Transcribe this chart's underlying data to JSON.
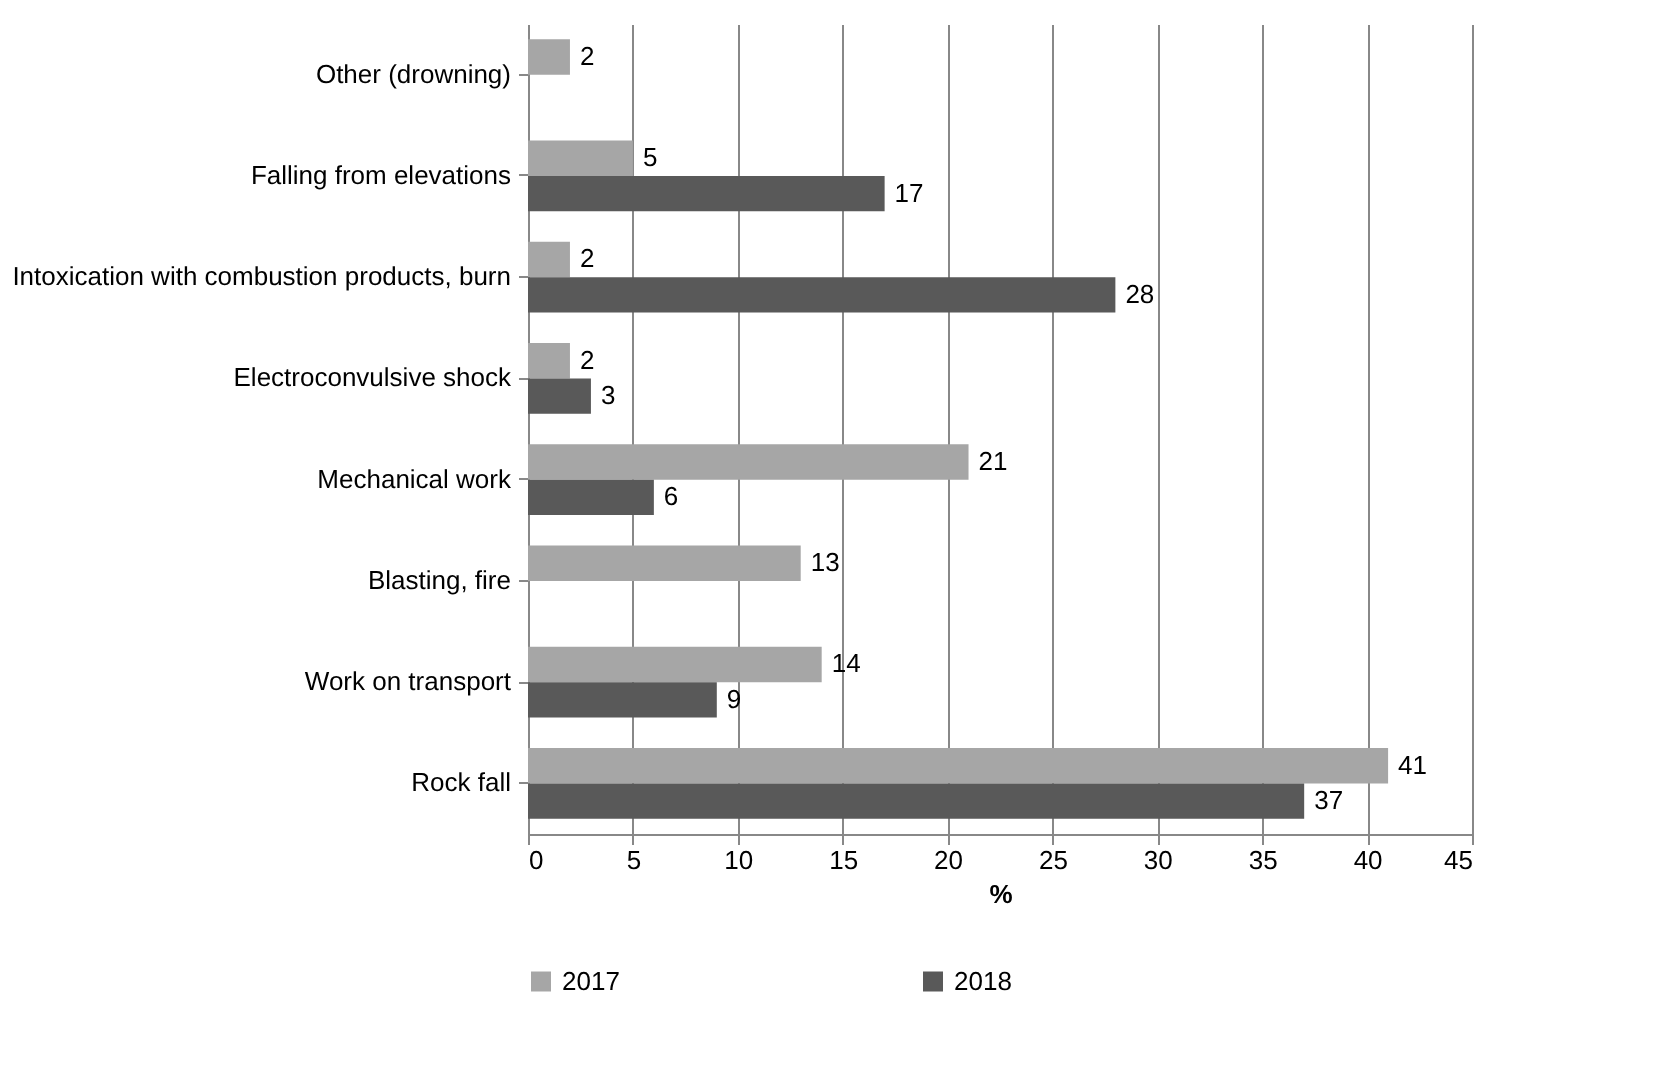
{
  "chart_data": {
    "type": "bar",
    "orientation": "horizontal",
    "xlabel": "%",
    "categories": [
      "Other (drowning)",
      "Falling from elevations",
      "Intoxication with combustion products, burn",
      "Electroconvulsive shock",
      "Mechanical work",
      "Blasting, fire",
      "Work on transport",
      "Rock fall"
    ],
    "series": [
      {
        "name": "2017",
        "color": "#a6a6a6",
        "values": [
          2,
          5,
          2,
          2,
          21,
          13,
          14,
          41
        ]
      },
      {
        "name": "2018",
        "color": "#595959",
        "values": [
          null,
          17,
          28,
          3,
          6,
          null,
          9,
          37
        ]
      }
    ],
    "xlim": [
      0,
      45
    ],
    "xticks": [
      0,
      5,
      10,
      15,
      20,
      25,
      30,
      35,
      40,
      45
    ],
    "grid": "x",
    "legend": "bottom",
    "data_labels": true
  }
}
